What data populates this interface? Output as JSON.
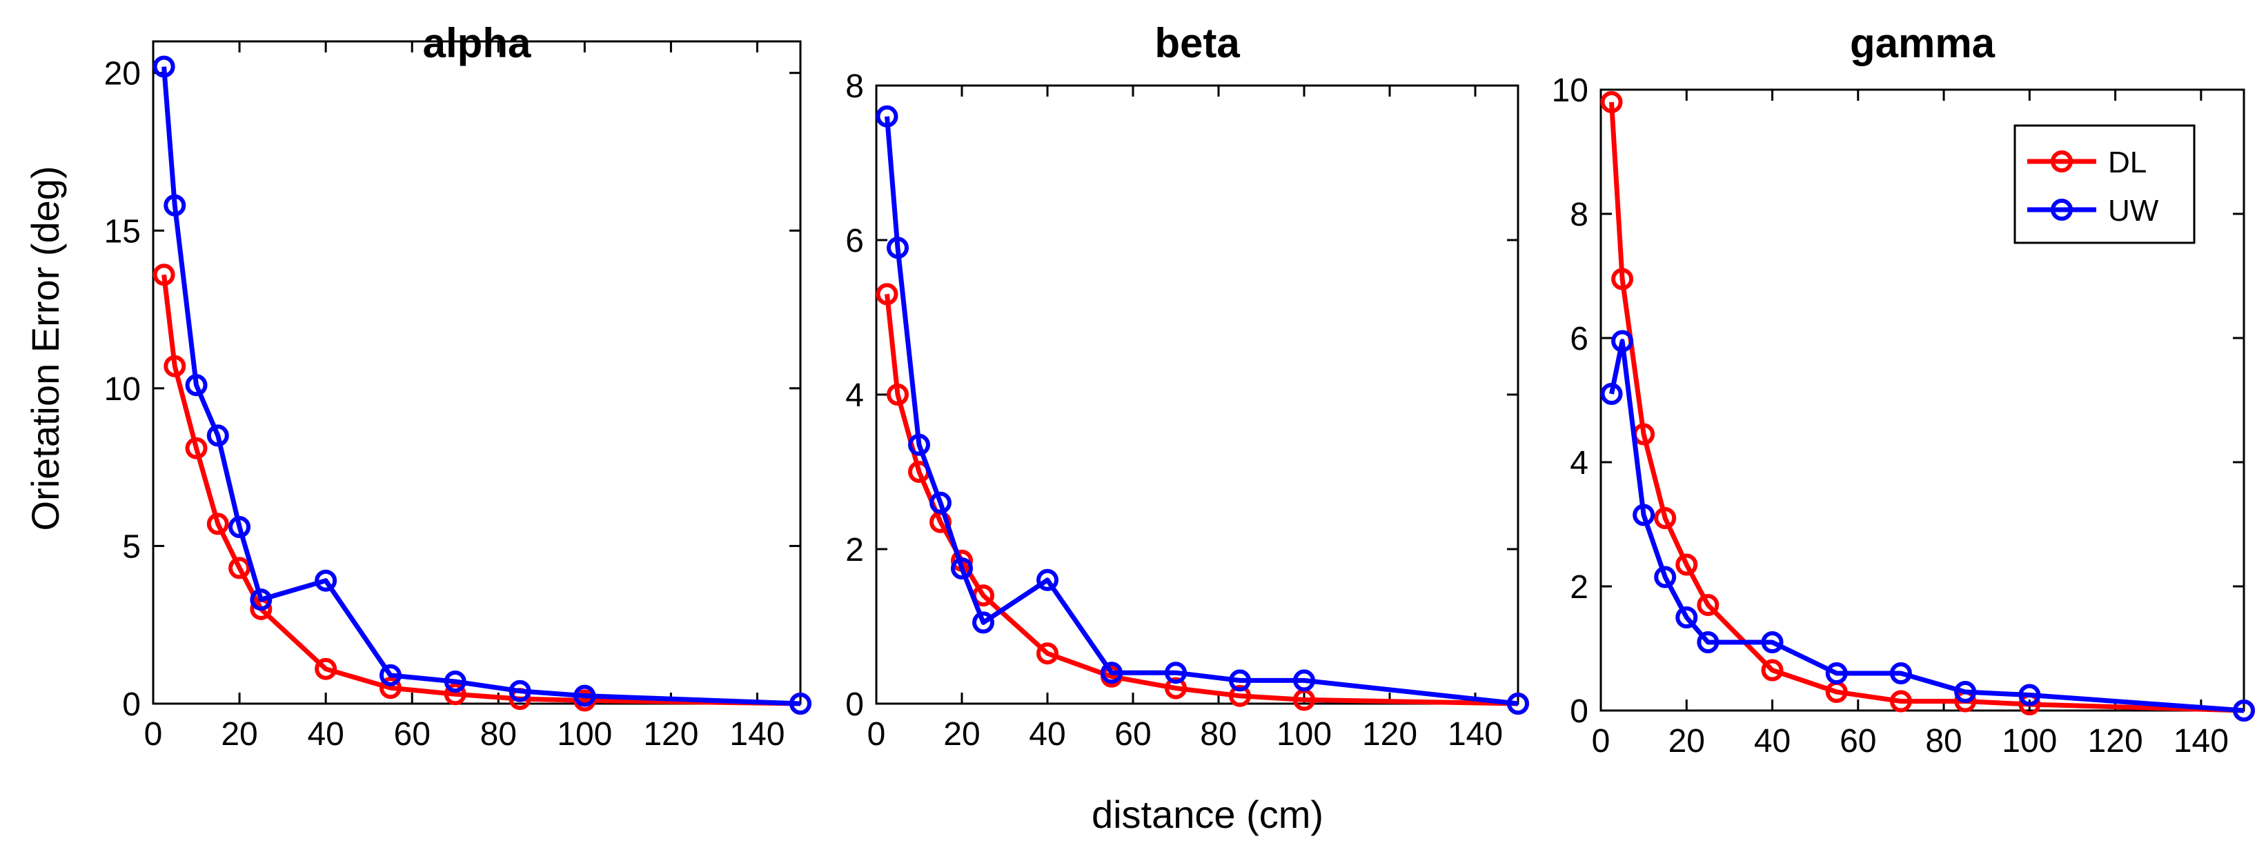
{
  "figure": {
    "xlabel": "distance (cm)",
    "ylabel": "Orietation Error (deg)"
  },
  "legend": {
    "entries": [
      {
        "name": "DL",
        "color": "#ff0000"
      },
      {
        "name": "UW",
        "color": "#0000ff"
      }
    ],
    "position": "top-right of gamma panel"
  },
  "chart_data": [
    {
      "type": "line",
      "title": "alpha",
      "xlim": [
        0,
        150
      ],
      "ylim": [
        0,
        21
      ],
      "xticks": [
        0,
        20,
        40,
        60,
        80,
        100,
        120,
        140
      ],
      "yticks": [
        0,
        5,
        10,
        15,
        20
      ],
      "series": [
        {
          "name": "DL",
          "color": "#ff0000",
          "x": [
            2.5,
            5,
            10,
            15,
            20,
            25,
            40,
            55,
            70,
            85,
            100,
            150
          ],
          "y": [
            13.6,
            10.7,
            8.1,
            5.7,
            4.3,
            3.0,
            1.1,
            0.5,
            0.3,
            0.15,
            0.1,
            0.0
          ]
        },
        {
          "name": "UW",
          "color": "#0000ff",
          "x": [
            2.5,
            5,
            10,
            15,
            20,
            25,
            40,
            55,
            70,
            85,
            100,
            150
          ],
          "y": [
            20.2,
            15.8,
            10.1,
            8.5,
            5.6,
            3.3,
            3.9,
            0.9,
            0.7,
            0.4,
            0.25,
            0.0
          ]
        }
      ]
    },
    {
      "type": "line",
      "title": "beta",
      "xlim": [
        0,
        150
      ],
      "ylim": [
        0,
        8
      ],
      "xticks": [
        0,
        20,
        40,
        60,
        80,
        100,
        120,
        140
      ],
      "yticks": [
        0,
        2,
        4,
        6,
        8
      ],
      "series": [
        {
          "name": "DL",
          "color": "#ff0000",
          "x": [
            2.5,
            5,
            10,
            15,
            20,
            25,
            40,
            55,
            70,
            85,
            100,
            150
          ],
          "y": [
            5.3,
            4.0,
            3.0,
            2.35,
            1.85,
            1.4,
            0.65,
            0.35,
            0.2,
            0.1,
            0.05,
            0.0
          ]
        },
        {
          "name": "UW",
          "color": "#0000ff",
          "x": [
            2.5,
            5,
            10,
            15,
            20,
            25,
            40,
            55,
            70,
            85,
            100,
            150
          ],
          "y": [
            7.6,
            5.9,
            3.35,
            2.6,
            1.75,
            1.05,
            1.6,
            0.4,
            0.4,
            0.3,
            0.3,
            0.0
          ]
        }
      ]
    },
    {
      "type": "line",
      "title": "gamma",
      "xlim": [
        0,
        150
      ],
      "ylim": [
        0,
        10
      ],
      "xticks": [
        0,
        20,
        40,
        60,
        80,
        100,
        120,
        140
      ],
      "yticks": [
        0,
        2,
        4,
        6,
        8,
        10
      ],
      "series": [
        {
          "name": "DL",
          "color": "#ff0000",
          "x": [
            2.5,
            5,
            10,
            15,
            20,
            25,
            40,
            55,
            70,
            85,
            100,
            150
          ],
          "y": [
            9.8,
            6.95,
            4.45,
            3.1,
            2.35,
            1.7,
            0.65,
            0.3,
            0.15,
            0.15,
            0.1,
            0.0
          ]
        },
        {
          "name": "UW",
          "color": "#0000ff",
          "x": [
            2.5,
            5,
            10,
            15,
            20,
            25,
            40,
            55,
            70,
            85,
            100,
            150
          ],
          "y": [
            5.1,
            5.95,
            3.15,
            2.15,
            1.5,
            1.1,
            1.1,
            0.6,
            0.6,
            0.3,
            0.25,
            0.0
          ]
        }
      ]
    }
  ]
}
